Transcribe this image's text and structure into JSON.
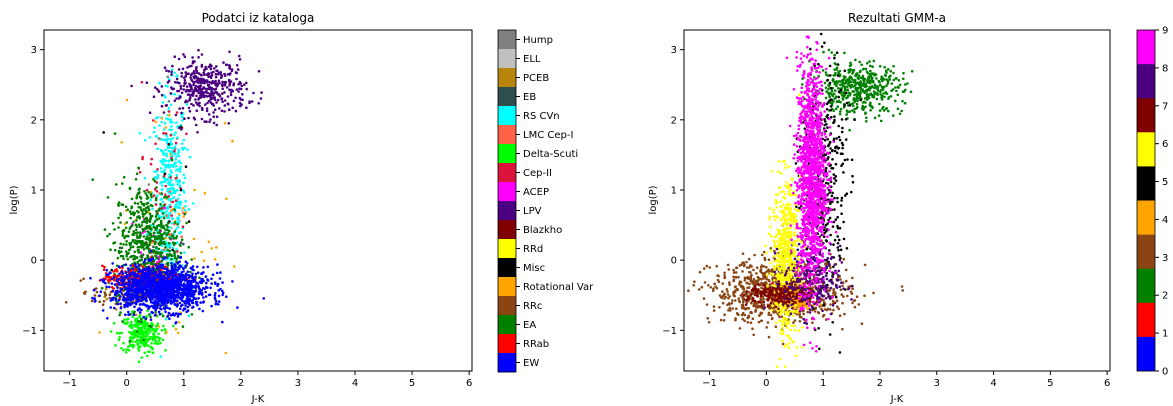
{
  "chart_data": [
    {
      "type": "scatter",
      "title": "Podatci iz kataloga",
      "xlabel": "J-K",
      "ylabel": "log(P)",
      "xlim": [
        -1.45,
        6.05
      ],
      "ylim": [
        -1.58,
        3.28
      ],
      "xticks": [
        "−1",
        "0",
        "1",
        "2",
        "3",
        "4",
        "5",
        "6"
      ],
      "xtick_values": [
        -1,
        0,
        1,
        2,
        3,
        4,
        5,
        6
      ],
      "yticks": [
        "−1",
        "0",
        "1",
        "2",
        "3"
      ],
      "ytick_values": [
        -1,
        0,
        1,
        2,
        3
      ],
      "grid": false,
      "legend": "colorbar-right",
      "classes": [
        {
          "name": "Hump",
          "color": "#808080",
          "cx": 0.8,
          "cy": 1.5,
          "sx": 0.2,
          "sy": 0.8,
          "n": 8
        },
        {
          "name": "ELL",
          "color": "#c0c0c0",
          "cx": 0.6,
          "cy": 0.2,
          "sx": 0.3,
          "sy": 0.4,
          "n": 10
        },
        {
          "name": "PCEB",
          "color": "#b8860b",
          "cx": 0.3,
          "cy": -0.5,
          "sx": 0.4,
          "sy": 0.15,
          "n": 25
        },
        {
          "name": "EB",
          "color": "#2f4f4f",
          "cx": 0.5,
          "cy": -0.2,
          "sx": 0.3,
          "sy": 0.3,
          "n": 40
        },
        {
          "name": "RS CVn",
          "color": "#00ffff",
          "cx": 0.75,
          "cy": 1.0,
          "sx": 0.15,
          "sy": 0.7,
          "n": 420
        },
        {
          "name": "LMC Cep-I",
          "color": "#ff6347",
          "cx": 0.7,
          "cy": 0.5,
          "sx": 0.2,
          "sy": 0.3,
          "n": 15
        },
        {
          "name": "Delta-Scuti",
          "color": "#00ff00",
          "cx": 0.25,
          "cy": -1.05,
          "sx": 0.18,
          "sy": 0.14,
          "n": 260
        },
        {
          "name": "Cep-II",
          "color": "#dc143c",
          "cx": 0.6,
          "cy": 1.0,
          "sx": 0.2,
          "sy": 0.8,
          "n": 60
        },
        {
          "name": "ACEP",
          "color": "#ff00ff",
          "cx": 0.5,
          "cy": 0.1,
          "sx": 0.2,
          "sy": 0.3,
          "n": 30
        },
        {
          "name": "LPV",
          "color": "#4b0082",
          "cx": 1.4,
          "cy": 2.45,
          "sx": 0.35,
          "sy": 0.2,
          "n": 420
        },
        {
          "name": "Blazkho",
          "color": "#800000",
          "cx": 0.3,
          "cy": -0.25,
          "sx": 0.2,
          "sy": 0.08,
          "n": 80
        },
        {
          "name": "RRd",
          "color": "#ffff00",
          "cx": 0.35,
          "cy": -0.35,
          "sx": 0.12,
          "sy": 0.08,
          "n": 40
        },
        {
          "name": "Misc",
          "color": "#000000",
          "cx": 0.8,
          "cy": 0.8,
          "sx": 0.4,
          "sy": 0.8,
          "n": 15
        },
        {
          "name": "Rotational Var",
          "color": "#ffa500",
          "cx": 0.8,
          "cy": 0.5,
          "sx": 0.5,
          "sy": 1.0,
          "n": 60
        },
        {
          "name": "RRc",
          "color": "#8b4513",
          "cx": 0.1,
          "cy": -0.45,
          "sx": 0.35,
          "sy": 0.1,
          "n": 160
        },
        {
          "name": "EA",
          "color": "#008000",
          "cx": 0.35,
          "cy": 0.2,
          "sx": 0.28,
          "sy": 0.45,
          "n": 620
        },
        {
          "name": "RRab",
          "color": "#ff0000",
          "cx": 0.3,
          "cy": -0.25,
          "sx": 0.35,
          "sy": 0.08,
          "n": 280
        },
        {
          "name": "EW",
          "color": "#0000ff",
          "cx": 0.6,
          "cy": -0.4,
          "sx": 0.42,
          "sy": 0.16,
          "n": 1300
        }
      ],
      "colorbar_labels": [
        "Hump",
        "ELL",
        "PCEB",
        "EB",
        "RS CVn",
        "LMC Cep-I",
        "Delta-Scuti",
        "Cep-II",
        "ACEP",
        "LPV",
        "Blazkho",
        "RRd",
        "Misc",
        "Rotational Var",
        "RRc",
        "EA",
        "RRab",
        "EW"
      ]
    },
    {
      "type": "scatter",
      "title": "Rezultati GMM-a",
      "xlabel": "J-K",
      "ylabel": "log(P)",
      "xlim": [
        -1.45,
        6.05
      ],
      "ylim": [
        -1.58,
        3.28
      ],
      "xticks": [
        "−1",
        "0",
        "1",
        "2",
        "3",
        "4",
        "5",
        "6"
      ],
      "xtick_values": [
        -1,
        0,
        1,
        2,
        3,
        4,
        5,
        6
      ],
      "yticks": [
        "−1",
        "0",
        "1",
        "2",
        "3"
      ],
      "ytick_values": [
        -1,
        0,
        1,
        2,
        3
      ],
      "grid": false,
      "legend": "colorbar-right",
      "classes": [
        {
          "name": "0",
          "color": "#0000ff",
          "cx": 0.45,
          "cy": -0.1,
          "sx": 0.2,
          "sy": 0.25,
          "n": 30
        },
        {
          "name": "1",
          "color": "#ff0000",
          "cx": 0.4,
          "cy": -0.45,
          "sx": 0.2,
          "sy": 0.1,
          "n": 60
        },
        {
          "name": "2",
          "color": "#008000",
          "cx": 1.6,
          "cy": 2.45,
          "sx": 0.4,
          "sy": 0.18,
          "n": 480
        },
        {
          "name": "3",
          "color": "#8b4513",
          "cx": 0.25,
          "cy": -0.45,
          "sx": 0.6,
          "sy": 0.22,
          "n": 900
        },
        {
          "name": "4",
          "color": "#ffa500",
          "cx": 0.55,
          "cy": -0.55,
          "sx": 0.15,
          "sy": 0.07,
          "n": 120
        },
        {
          "name": "5",
          "color": "#000000",
          "cx": 1.0,
          "cy": 1.2,
          "sx": 0.2,
          "sy": 0.9,
          "n": 420
        },
        {
          "name": "6",
          "color": "#ffff00",
          "cx": 0.35,
          "cy": 0.0,
          "sx": 0.12,
          "sy": 0.55,
          "n": 650
        },
        {
          "name": "7",
          "color": "#800000",
          "cx": 0.3,
          "cy": -0.5,
          "sx": 0.3,
          "sy": 0.08,
          "n": 220
        },
        {
          "name": "8",
          "color": "#4b0082",
          "cx": 0.8,
          "cy": -0.3,
          "sx": 0.25,
          "sy": 0.25,
          "n": 220
        },
        {
          "name": "9",
          "color": "#ff00ff",
          "cx": 0.8,
          "cy": 1.2,
          "sx": 0.13,
          "sy": 0.8,
          "n": 1400
        }
      ],
      "colorbar_labels": [
        "9",
        "8",
        "7",
        "6",
        "5",
        "4",
        "3",
        "2",
        "1",
        "0"
      ]
    }
  ]
}
